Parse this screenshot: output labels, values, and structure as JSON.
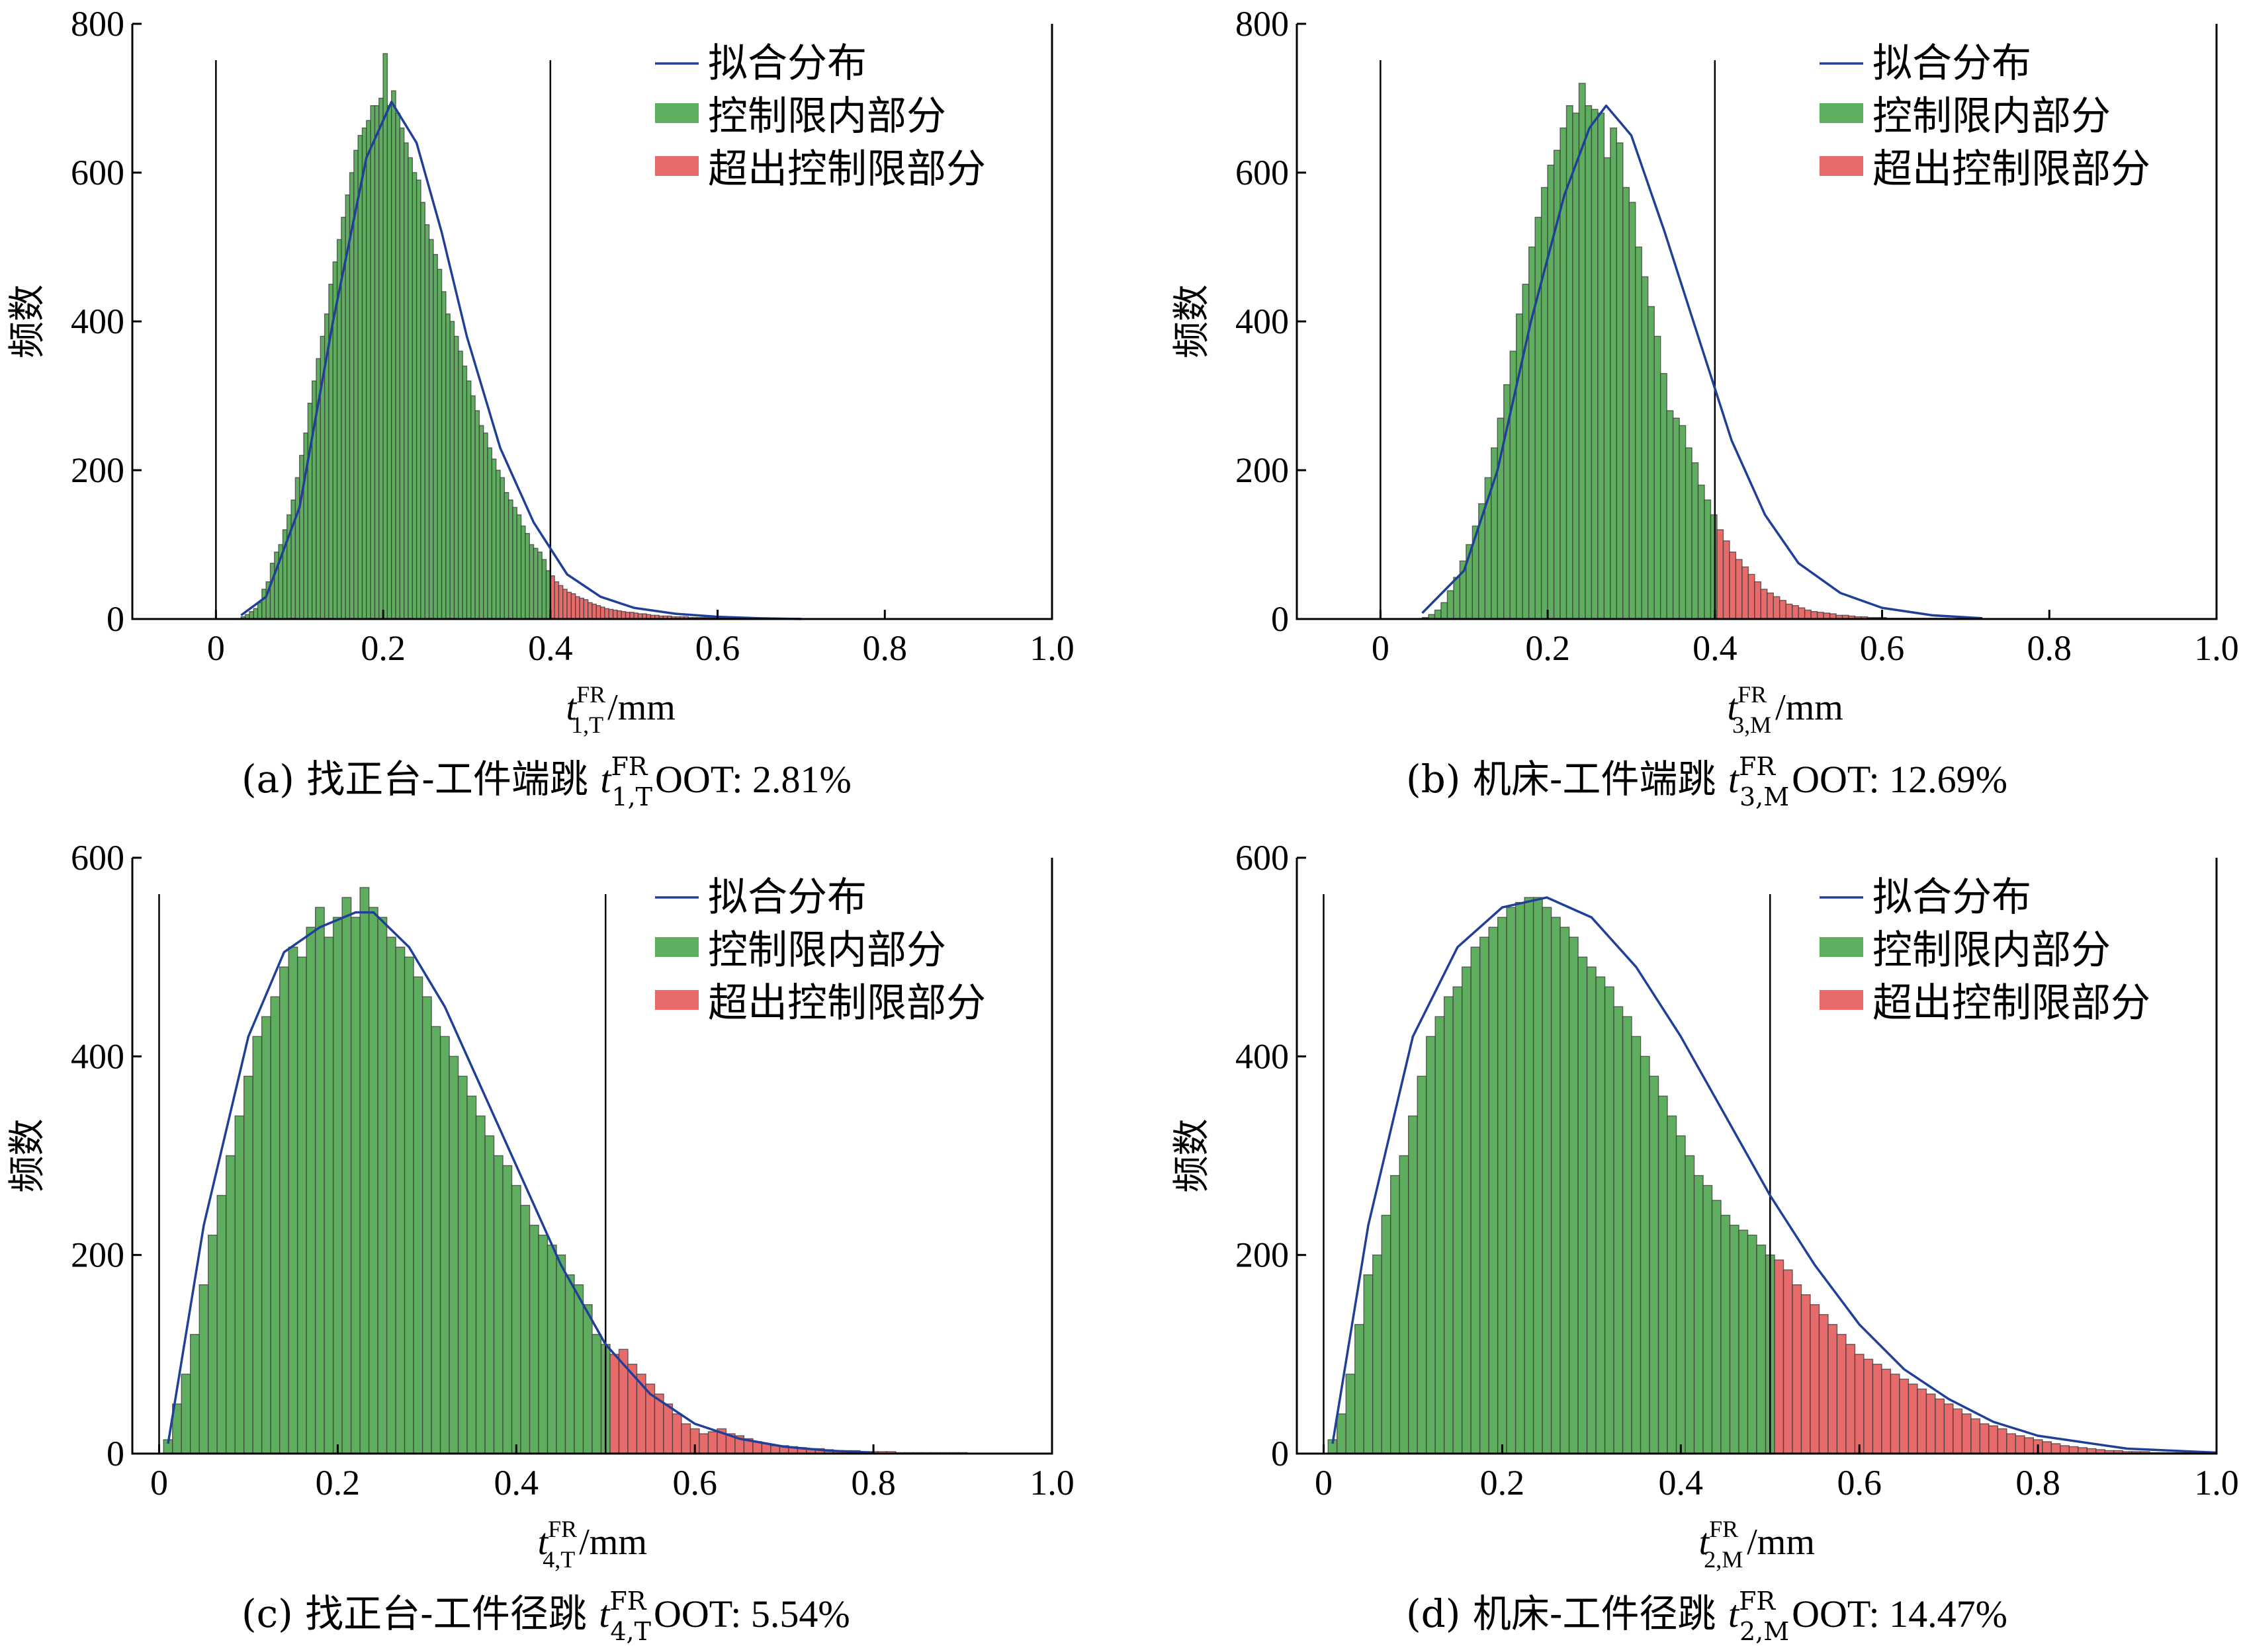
{
  "figure": {
    "legend": {
      "fit_label": "拟合分布",
      "in_label": "控制限内部分",
      "out_label": "超出控制限部分"
    },
    "ylabel": "频数",
    "xlabel_unit": "/mm",
    "colors": {
      "fit": "#1f3f99",
      "in": "#5fae5f",
      "out": "#e86b6b",
      "bar_edge": "#3a3a3a",
      "axis": "#000000"
    }
  },
  "chart_data": [
    {
      "type": "histogram",
      "caption_prefix": "(a)  找正台-工件端跳",
      "caption_suffix": "OOT: 2.81%",
      "var_base": "t",
      "var_sup": "FR",
      "var_sub": "1,T",
      "xlim": [
        -0.1,
        1.0
      ],
      "ylim": [
        0,
        800
      ],
      "xticks": [
        0,
        0.2,
        0.4,
        0.6,
        0.8,
        1.0
      ],
      "xticklabels": [
        "0",
        "0.2",
        "0.4",
        "0.6",
        "0.8",
        "1.0"
      ],
      "yticks": [
        0,
        200,
        400,
        600,
        800
      ],
      "control_limits": [
        0,
        0.4
      ],
      "bins_start": 0.03,
      "bin_width": 0.005,
      "counts": [
        3,
        6,
        10,
        14,
        22,
        40,
        50,
        75,
        90,
        100,
        120,
        140,
        160,
        190,
        220,
        250,
        290,
        320,
        350,
        380,
        410,
        450,
        480,
        510,
        540,
        570,
        600,
        630,
        650,
        660,
        670,
        690,
        690,
        700,
        760,
        690,
        710,
        680,
        660,
        640,
        620,
        600,
        590,
        560,
        530,
        510,
        490,
        470,
        440,
        410,
        400,
        380,
        360,
        340,
        320,
        300,
        280,
        260,
        250,
        230,
        215,
        200,
        190,
        170,
        160,
        150,
        140,
        125,
        115,
        100,
        95,
        90,
        80,
        65,
        58,
        50,
        45,
        40,
        36,
        34,
        30,
        28,
        26,
        22,
        20,
        18,
        16,
        14,
        13,
        12,
        11,
        10,
        9,
        9,
        8,
        7,
        7,
        6,
        5,
        5,
        4,
        4,
        4,
        3,
        3,
        3,
        3,
        2,
        2,
        2,
        2,
        2,
        2,
        2,
        1,
        1,
        1,
        1,
        1,
        1,
        1,
        1,
        1,
        1,
        1,
        1,
        1,
        1,
        1,
        1,
        1,
        1,
        1,
        1
      ],
      "fit": {
        "x": [
          0.03,
          0.06,
          0.1,
          0.14,
          0.18,
          0.21,
          0.24,
          0.27,
          0.3,
          0.34,
          0.38,
          0.42,
          0.46,
          0.5,
          0.55,
          0.6,
          0.65,
          0.7
        ],
        "y": [
          5,
          30,
          150,
          400,
          620,
          695,
          640,
          520,
          380,
          230,
          130,
          60,
          30,
          15,
          7,
          3,
          1,
          0
        ]
      }
    },
    {
      "type": "histogram",
      "caption_prefix": "(b)  机床-工件端跳",
      "caption_suffix": "OOT: 12.69%",
      "var_base": "t",
      "var_sup": "FR",
      "var_sub": "3,M",
      "xlim": [
        -0.1,
        1.0
      ],
      "ylim": [
        0,
        800
      ],
      "xticks": [
        0,
        0.2,
        0.4,
        0.6,
        0.8,
        1.0
      ],
      "xticklabels": [
        "0",
        "0.2",
        "0.4",
        "0.6",
        "0.8",
        "1.0"
      ],
      "yticks": [
        0,
        200,
        400,
        600,
        800
      ],
      "control_limits": [
        0,
        0.4
      ],
      "bins_start": 0.05,
      "bin_width": 0.0075,
      "counts": [
        2,
        6,
        12,
        22,
        38,
        56,
        78,
        100,
        125,
        155,
        190,
        230,
        270,
        315,
        360,
        410,
        450,
        500,
        540,
        580,
        610,
        630,
        660,
        690,
        680,
        720,
        690,
        685,
        680,
        620,
        660,
        640,
        580,
        560,
        500,
        460,
        420,
        380,
        330,
        280,
        270,
        260,
        230,
        210,
        180,
        160,
        140,
        120,
        105,
        90,
        80,
        70,
        60,
        50,
        40,
        35,
        30,
        25,
        20,
        18,
        15,
        12,
        10,
        9,
        8,
        7,
        5,
        5,
        4,
        3,
        3,
        2,
        2,
        2,
        1,
        1,
        1,
        1,
        1,
        1,
        1,
        1,
        1,
        1
      ],
      "fit": {
        "x": [
          0.05,
          0.1,
          0.14,
          0.18,
          0.22,
          0.25,
          0.27,
          0.3,
          0.34,
          0.38,
          0.42,
          0.46,
          0.5,
          0.55,
          0.6,
          0.66,
          0.72
        ],
        "y": [
          8,
          65,
          200,
          400,
          570,
          660,
          690,
          650,
          520,
          380,
          240,
          140,
          75,
          35,
          15,
          5,
          1
        ]
      }
    },
    {
      "type": "histogram",
      "caption_prefix": "(c)  找正台-工件径跳",
      "caption_suffix": "OOT: 5.54%",
      "var_base": "t",
      "var_sup": "FR",
      "var_sub": "4,T",
      "xlim": [
        -0.03,
        1.0
      ],
      "ylim": [
        0,
        600
      ],
      "xticks": [
        0,
        0.2,
        0.4,
        0.6,
        0.8,
        1.0
      ],
      "xticklabels": [
        "0",
        "0.2",
        "0.4",
        "0.6",
        "0.8",
        "1.0"
      ],
      "yticks": [
        0,
        200,
        400,
        600
      ],
      "control_limits": [
        0,
        0.5
      ],
      "bins_start": 0.005,
      "bin_width": 0.01,
      "counts": [
        14,
        50,
        80,
        120,
        170,
        220,
        260,
        300,
        340,
        380,
        420,
        440,
        460,
        490,
        510,
        500,
        530,
        550,
        520,
        540,
        560,
        540,
        570,
        550,
        540,
        520,
        510,
        500,
        480,
        460,
        430,
        420,
        400,
        380,
        360,
        340,
        320,
        300,
        290,
        270,
        250,
        230,
        220,
        210,
        200,
        180,
        170,
        150,
        120,
        110,
        100,
        105,
        90,
        80,
        70,
        60,
        50,
        40,
        30,
        25,
        20,
        22,
        25,
        20,
        18,
        15,
        12,
        10,
        8,
        8,
        7,
        6,
        5,
        5,
        4,
        3,
        3,
        3,
        2,
        2,
        2,
        2,
        1,
        1,
        1,
        1,
        1,
        1,
        1,
        1
      ],
      "fit": {
        "x": [
          0.01,
          0.05,
          0.1,
          0.14,
          0.18,
          0.22,
          0.24,
          0.28,
          0.32,
          0.36,
          0.4,
          0.45,
          0.5,
          0.55,
          0.6,
          0.65,
          0.7,
          0.75,
          0.8
        ],
        "y": [
          10,
          230,
          420,
          505,
          530,
          545,
          545,
          510,
          450,
          370,
          290,
          190,
          110,
          60,
          30,
          15,
          7,
          3,
          1
        ]
      }
    },
    {
      "type": "histogram",
      "caption_prefix": "(d)  机床-工件径跳",
      "caption_suffix": "OOT: 14.47%",
      "var_base": "t",
      "var_sup": "FR",
      "var_sub": "2,M",
      "xlim": [
        -0.03,
        1.0
      ],
      "ylim": [
        0,
        600
      ],
      "xticks": [
        0,
        0.2,
        0.4,
        0.6,
        0.8,
        1.0
      ],
      "xticklabels": [
        "0",
        "0.2",
        "0.4",
        "0.6",
        "0.8",
        "1.0"
      ],
      "yticks": [
        0,
        200,
        400,
        600
      ],
      "control_limits": [
        0,
        0.5
      ],
      "bins_start": 0.005,
      "bin_width": 0.01,
      "counts": [
        14,
        40,
        80,
        130,
        180,
        200,
        240,
        280,
        300,
        340,
        380,
        420,
        440,
        460,
        470,
        490,
        510,
        520,
        530,
        540,
        550,
        555,
        560,
        560,
        550,
        540,
        530,
        520,
        500,
        490,
        480,
        470,
        450,
        440,
        420,
        400,
        380,
        360,
        340,
        320,
        300,
        280,
        270,
        255,
        240,
        230,
        225,
        220,
        210,
        200,
        195,
        185,
        170,
        160,
        150,
        140,
        130,
        120,
        110,
        100,
        95,
        90,
        85,
        80,
        75,
        70,
        65,
        60,
        55,
        50,
        45,
        40,
        35,
        30,
        28,
        25,
        20,
        18,
        16,
        14,
        12,
        10,
        8,
        7,
        6,
        5,
        4,
        3,
        3,
        2,
        2,
        2,
        1,
        1,
        1,
        1,
        1,
        1,
        1
      ],
      "fit": {
        "x": [
          0.01,
          0.05,
          0.1,
          0.15,
          0.2,
          0.25,
          0.3,
          0.35,
          0.4,
          0.45,
          0.5,
          0.55,
          0.6,
          0.65,
          0.7,
          0.75,
          0.8,
          0.9,
          1.0
        ],
        "y": [
          10,
          230,
          420,
          510,
          550,
          560,
          540,
          490,
          420,
          340,
          260,
          190,
          130,
          85,
          55,
          32,
          18,
          5,
          1
        ]
      }
    }
  ]
}
